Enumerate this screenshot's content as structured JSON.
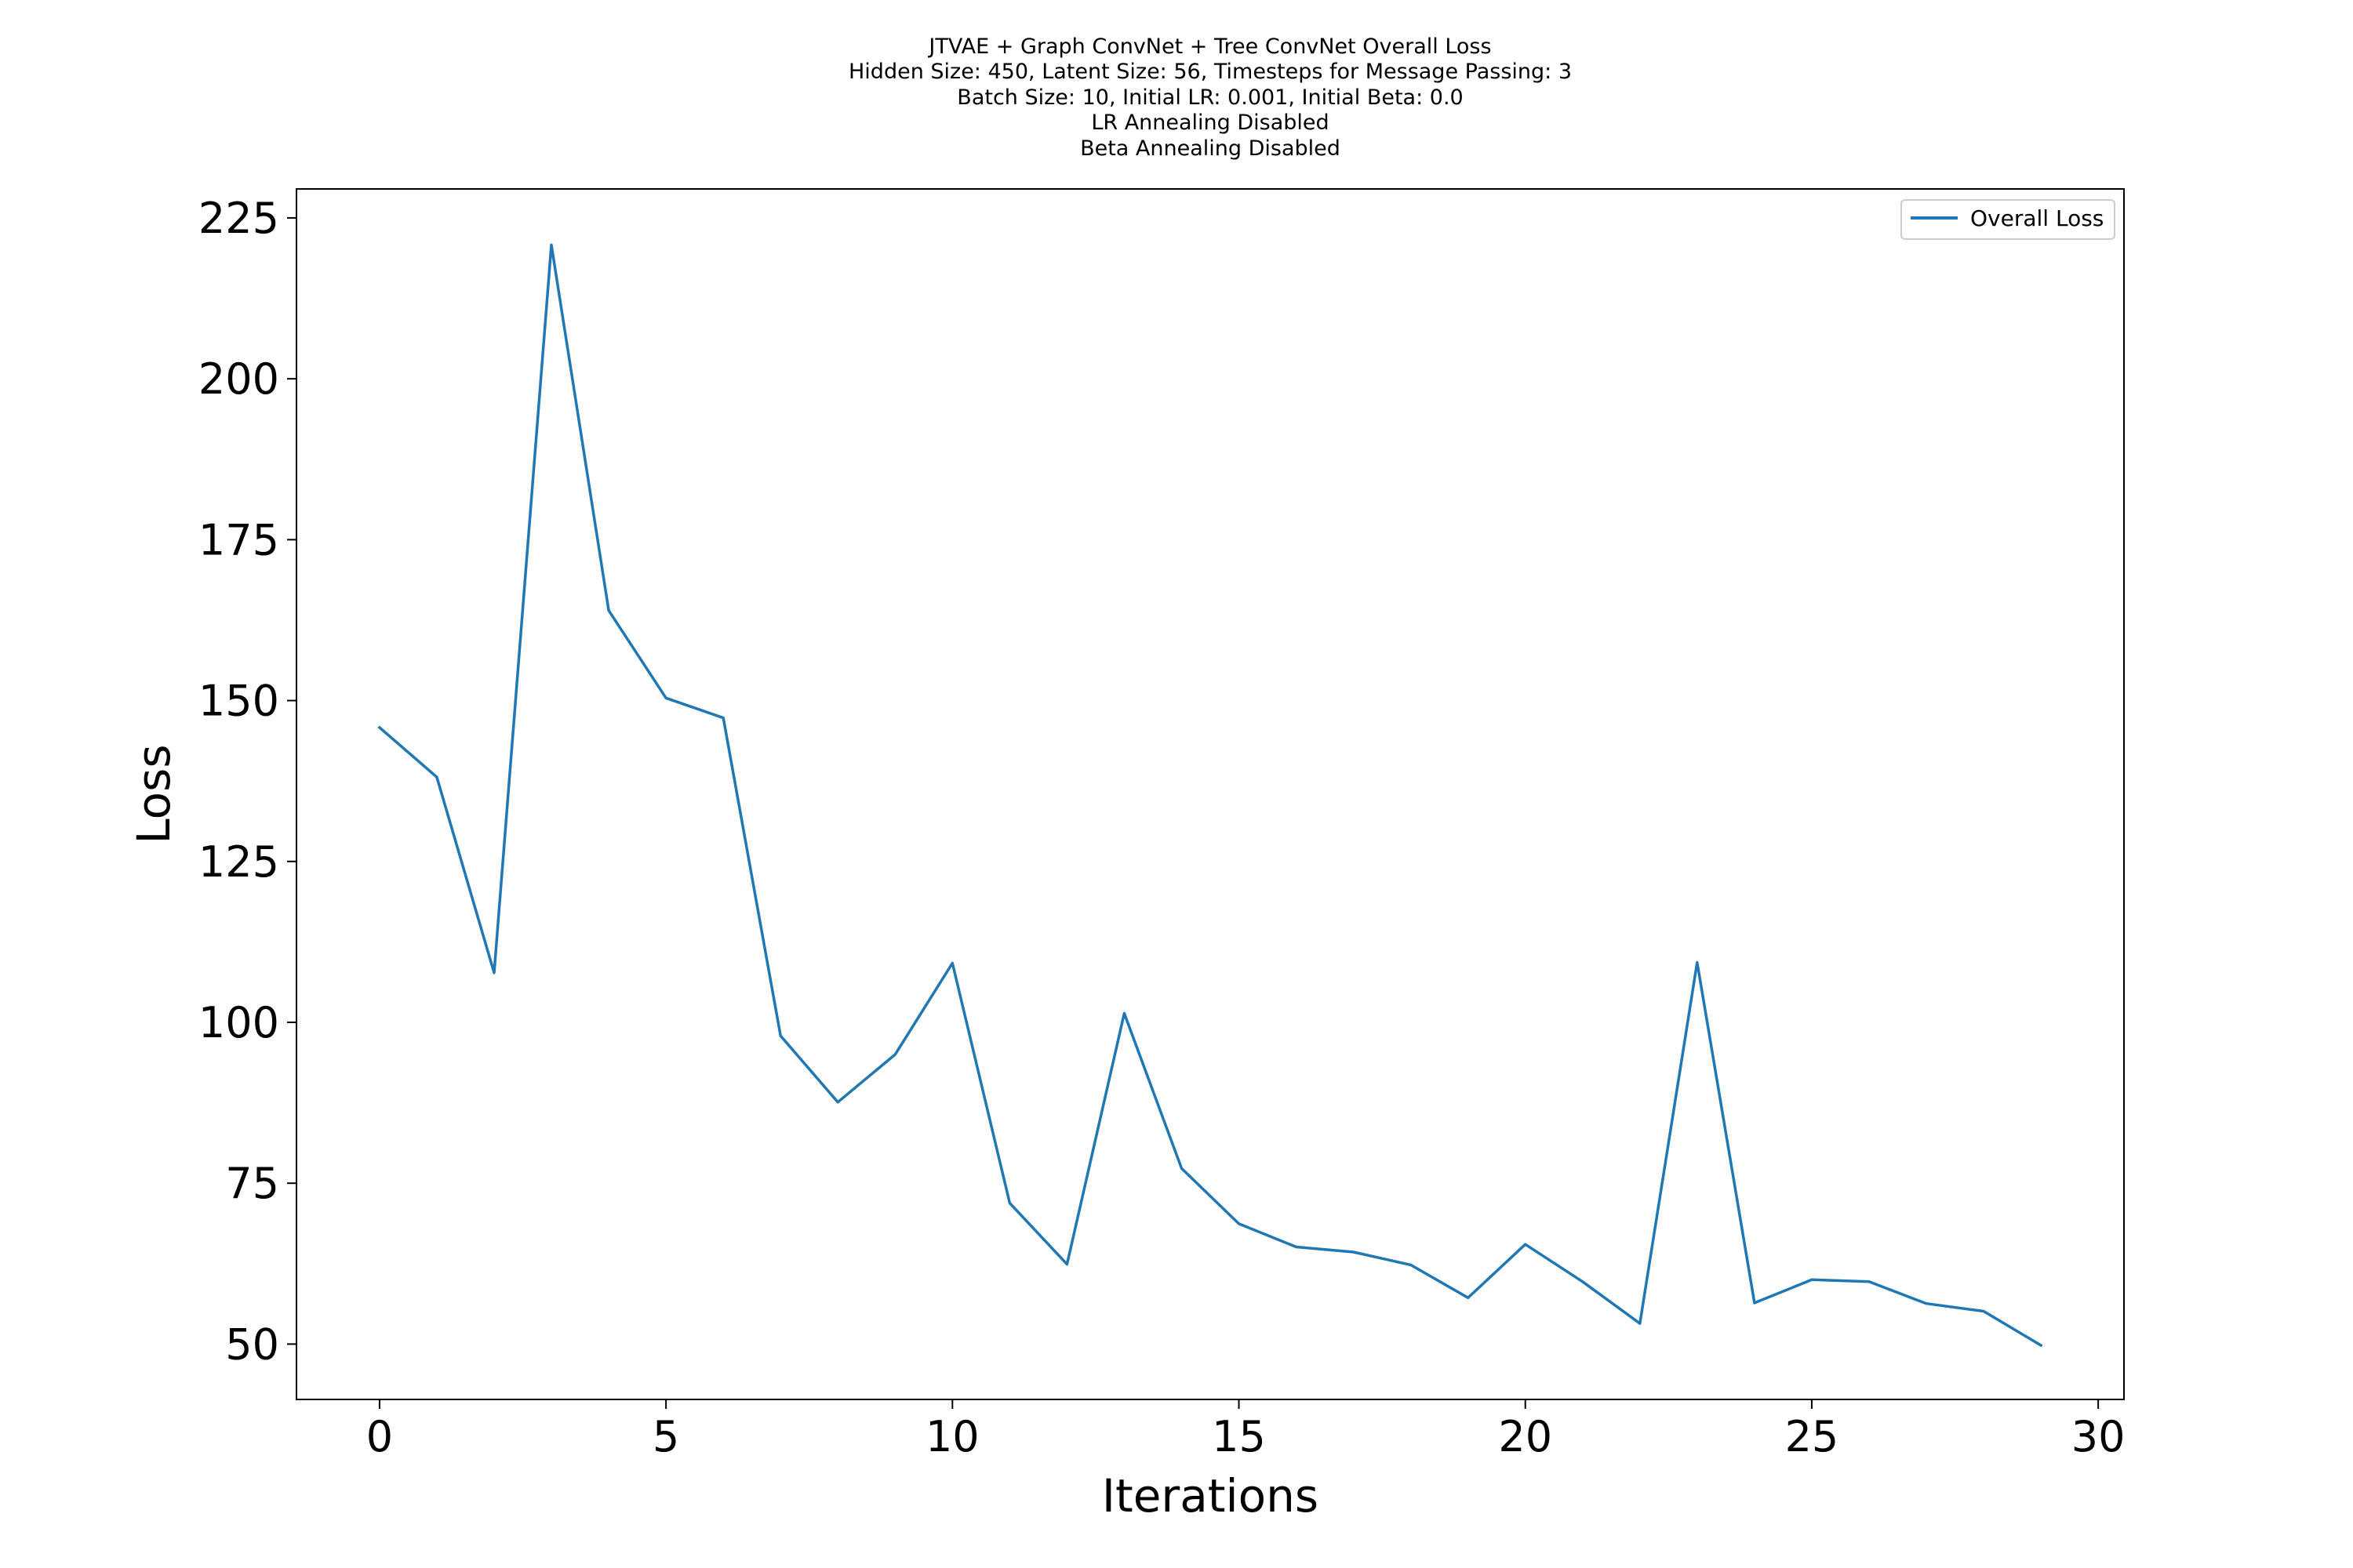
{
  "chart_data": {
    "type": "line",
    "title_lines": [
      "JTVAE + Graph ConvNet + Tree ConvNet Overall Loss",
      "Hidden Size: 450, Latent Size: 56, Timesteps for Message Passing: 3",
      "Batch Size: 10, Initial LR: 0.001, Initial Beta: 0.0",
      "LR Annealing Disabled",
      "Beta Annealing Disabled"
    ],
    "xlabel": "Iterations",
    "ylabel": "Loss",
    "xlim": [
      -1.45,
      30.45
    ],
    "ylim": [
      41.4,
      229.5
    ],
    "xticks": [
      0,
      5,
      10,
      15,
      20,
      25,
      30
    ],
    "yticks": [
      50,
      75,
      100,
      125,
      150,
      175,
      200,
      225
    ],
    "grid": false,
    "legend_position": "top-right",
    "series": [
      {
        "name": "Overall Loss",
        "color": "#1f77b4",
        "x": [
          0,
          1,
          2,
          3,
          4,
          5,
          6,
          7,
          8,
          9,
          10,
          11,
          12,
          13,
          14,
          15,
          16,
          17,
          18,
          19,
          20,
          21,
          22,
          23,
          24,
          25,
          26,
          27,
          28,
          29
        ],
        "y": [
          145.8,
          138.1,
          107.7,
          220.8,
          164.0,
          150.4,
          147.3,
          97.9,
          87.6,
          95.0,
          109.2,
          71.9,
          62.4,
          101.4,
          77.3,
          68.7,
          65.1,
          64.3,
          62.3,
          57.2,
          65.5,
          59.7,
          53.2,
          109.3,
          56.4,
          60.0,
          59.7,
          56.3,
          55.1,
          49.8
        ]
      }
    ]
  }
}
